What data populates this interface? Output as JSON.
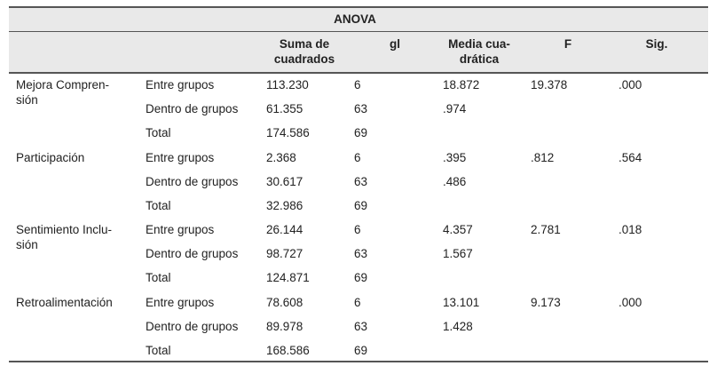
{
  "title": "ANOVA",
  "headers": {
    "suma": "Suma de\ncuadrados",
    "gl": "gl",
    "media": "Media cua-\ndrática",
    "f": "F",
    "sig": "Sig."
  },
  "variables": [
    {
      "name": "Mejora Compren-\nsión",
      "rows": [
        {
          "group": "Entre grupos",
          "suma": "113.230",
          "gl": "6",
          "media": "18.872",
          "f": "19.378",
          "sig": ".000"
        },
        {
          "group": "Dentro de grupos",
          "suma": "61.355",
          "gl": "63",
          "media": ".974",
          "f": "",
          "sig": ""
        },
        {
          "group": "Total",
          "suma": "174.586",
          "gl": "69",
          "media": "",
          "f": "",
          "sig": ""
        }
      ]
    },
    {
      "name": "Participación",
      "rows": [
        {
          "group": "Entre grupos",
          "suma": "2.368",
          "gl": "6",
          "media": ".395",
          "f": ".812",
          "sig": ".564"
        },
        {
          "group": "Dentro de grupos",
          "suma": "30.617",
          "gl": "63",
          "media": ".486",
          "f": "",
          "sig": ""
        },
        {
          "group": "Total",
          "suma": "32.986",
          "gl": "69",
          "media": "",
          "f": "",
          "sig": ""
        }
      ]
    },
    {
      "name": "Sentimiento Inclu-\nsión",
      "rows": [
        {
          "group": "Entre grupos",
          "suma": "26.144",
          "gl": "6",
          "media": "4.357",
          "f": "2.781",
          "sig": ".018"
        },
        {
          "group": "Dentro de grupos",
          "suma": "98.727",
          "gl": "63",
          "media": "1.567",
          "f": "",
          "sig": ""
        },
        {
          "group": "Total",
          "suma": "124.871",
          "gl": "69",
          "media": "",
          "f": "",
          "sig": ""
        }
      ]
    },
    {
      "name": "Retroalimentación",
      "rows": [
        {
          "group": "Entre grupos",
          "suma": "78.608",
          "gl": "6",
          "media": "13.101",
          "f": "9.173",
          "sig": ".000"
        },
        {
          "group": "Dentro de grupos",
          "suma": "89.978",
          "gl": "63",
          "media": "1.428",
          "f": "",
          "sig": ""
        },
        {
          "group": "Total",
          "suma": "168.586",
          "gl": "69",
          "media": "",
          "f": "",
          "sig": ""
        }
      ]
    }
  ]
}
